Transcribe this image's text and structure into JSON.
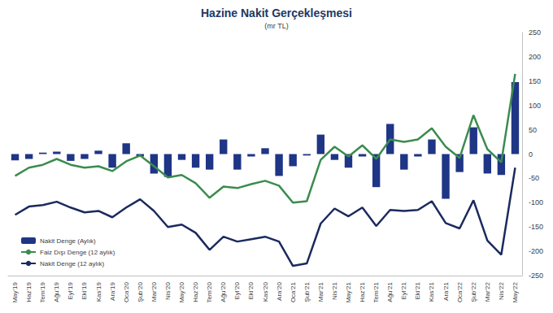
{
  "chart_data": {
    "type": "bar",
    "title": "Hazine Nakit Gerçekleşmesi",
    "subtitle": "(mr TL)",
    "categories": [
      "May'19",
      "Haz'19",
      "Tem'19",
      "Ağu'19",
      "Eyl'19",
      "Eki'19",
      "Kas'19",
      "Ara'19",
      "Oca'20",
      "Şub'20",
      "Mar'20",
      "Nis'20",
      "May'20",
      "Haz'20",
      "Tem'20",
      "Ağu'20",
      "Eyl'20",
      "Eki'20",
      "Kas'20",
      "Ara'20",
      "Oca'21",
      "Şub'21",
      "Mar'21",
      "Nis'21",
      "May'21",
      "Haz'21",
      "Tem'21",
      "Ağu'21",
      "Eyl'21",
      "Eki'21",
      "Kas'21",
      "Ara'21",
      "Oca'22",
      "Şub'22",
      "Mar'22",
      "Nis'22",
      "May'22"
    ],
    "series": [
      {
        "name": "Nakit Denge (Aylık)",
        "type": "bar",
        "color": "#1f3585",
        "values": [
          -13,
          -10,
          3,
          5,
          -14,
          -10,
          7,
          -28,
          22,
          -5,
          -40,
          -47,
          -12,
          -28,
          -32,
          30,
          -32,
          -5,
          12,
          -45,
          -25,
          -3,
          40,
          -12,
          -28,
          -5,
          -68,
          62,
          -32,
          -5,
          30,
          -92,
          -37,
          55,
          -40,
          -43,
          148
        ]
      },
      {
        "name": "Faiz Dışı Denge (12 aylık)",
        "type": "line",
        "color": "#3b8c4e",
        "values": [
          -45,
          -28,
          -22,
          -10,
          -22,
          -28,
          -25,
          -35,
          -15,
          -3,
          -25,
          -48,
          -43,
          -60,
          -90,
          -67,
          -70,
          -62,
          -55,
          -65,
          -100,
          -97,
          -12,
          15,
          -5,
          18,
          -10,
          30,
          25,
          30,
          53,
          15,
          -8,
          80,
          10,
          -17,
          165
        ]
      },
      {
        "name": "Nakit Denge (12 aylık)",
        "type": "line",
        "color": "#1b2a5e",
        "values": [
          -125,
          -108,
          -105,
          -98,
          -110,
          -120,
          -117,
          -130,
          -110,
          -93,
          -117,
          -150,
          -145,
          -162,
          -197,
          -170,
          -180,
          -175,
          -170,
          -180,
          -230,
          -225,
          -143,
          -112,
          -128,
          -110,
          -148,
          -115,
          -117,
          -115,
          -97,
          -142,
          -153,
          -95,
          -178,
          -207,
          -28
        ]
      }
    ],
    "ylim": [
      -250,
      250
    ],
    "yticks": [
      -250,
      -200,
      -150,
      -100,
      -50,
      0,
      50,
      100,
      150,
      200,
      250
    ],
    "grid": false,
    "legend": "bottom-left"
  }
}
